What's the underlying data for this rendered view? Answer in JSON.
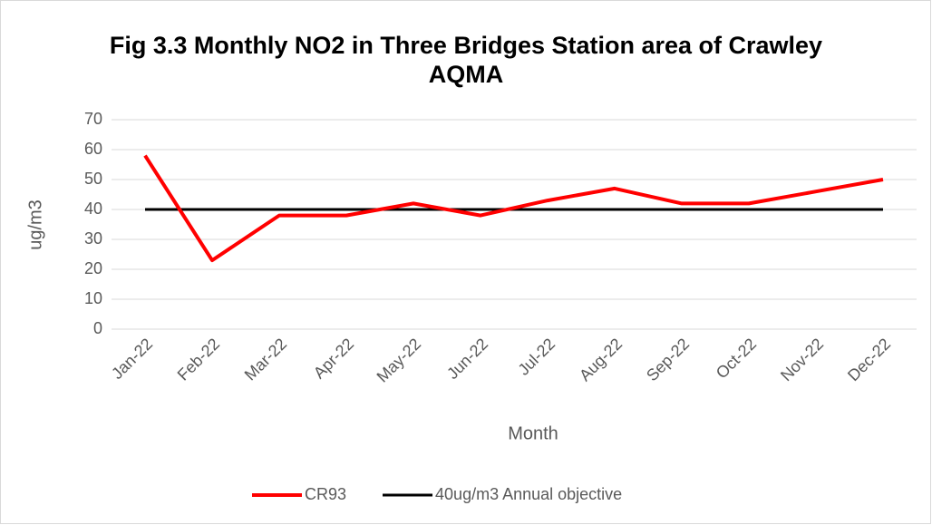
{
  "chart_data": {
    "type": "line",
    "title": "Fig 3.3 Monthly NO2 in Three Bridges Station area of Crawley AQMA",
    "x_label": "Month",
    "y_label": "ug/m3",
    "categories": [
      "Jan-22",
      "Feb-22",
      "Mar-22",
      "Apr-22",
      "May-22",
      "Jun-22",
      "Jul-22",
      "Aug-22",
      "Sep-22",
      "Oct-22",
      "Nov-22",
      "Dec-22"
    ],
    "series": [
      {
        "name": "CR93",
        "color": "#ff0000",
        "values": [
          58,
          23,
          38,
          38,
          42,
          38,
          43,
          47,
          42,
          42,
          46,
          50
        ]
      },
      {
        "name": "40ug/m3 Annual objective",
        "color": "#000000",
        "values": [
          40,
          40,
          40,
          40,
          40,
          40,
          40,
          40,
          40,
          40,
          40,
          40
        ]
      }
    ],
    "ylim": [
      0,
      70
    ],
    "yticks": [
      0,
      10,
      20,
      30,
      40,
      50,
      60,
      70
    ],
    "grid": true,
    "legend": "bottom"
  }
}
